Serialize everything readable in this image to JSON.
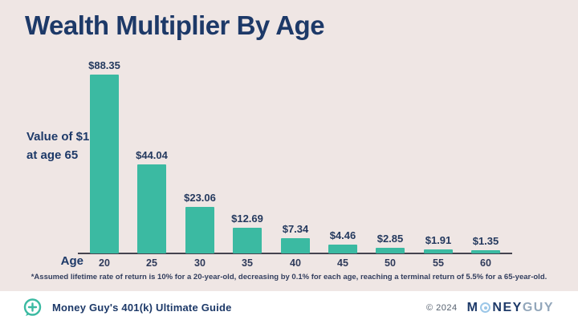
{
  "title": "Wealth Multiplier By Age",
  "y_axis_label": "Value of $1\nat age 65",
  "x_axis_label": "Age",
  "footnote": "*Assumed lifetime rate of return is 10% for a 20-year-old, decreasing by 0.1% for each age, reaching a terminal return of 5.5% for a 65-year-old.",
  "footer": {
    "left_text": "Money Guy's 401(k) Ultimate Guide",
    "copyright": "© 2024",
    "brand_part1": "M",
    "brand_part2": "NEY",
    "brand_part3": "GUY"
  },
  "colors": {
    "background": "#EFE6E4",
    "bar": "#3BBAA2",
    "navy": "#1D3968",
    "axis": "#45434F",
    "footer_bg": "#FFFFFF",
    "logo_light_blue": "#9CC7E8",
    "logo_muted": "#93A7BB"
  },
  "chart_data": {
    "type": "bar",
    "categories": [
      "20",
      "25",
      "30",
      "35",
      "40",
      "45",
      "50",
      "55",
      "60"
    ],
    "values": [
      88.35,
      44.04,
      23.06,
      12.69,
      7.34,
      4.46,
      2.85,
      1.91,
      1.35
    ],
    "labels": [
      "$88.35",
      "$44.04",
      "$23.06",
      "$12.69",
      "$7.34",
      "$4.46",
      "$2.85",
      "$1.91",
      "$1.35"
    ],
    "title": "Wealth Multiplier By Age",
    "xlabel": "Age",
    "ylabel": "Value of $1 at age 65",
    "ylim": [
      0,
      90
    ],
    "grid": false,
    "legend": "none",
    "bar_color": "#3BBAA2"
  }
}
